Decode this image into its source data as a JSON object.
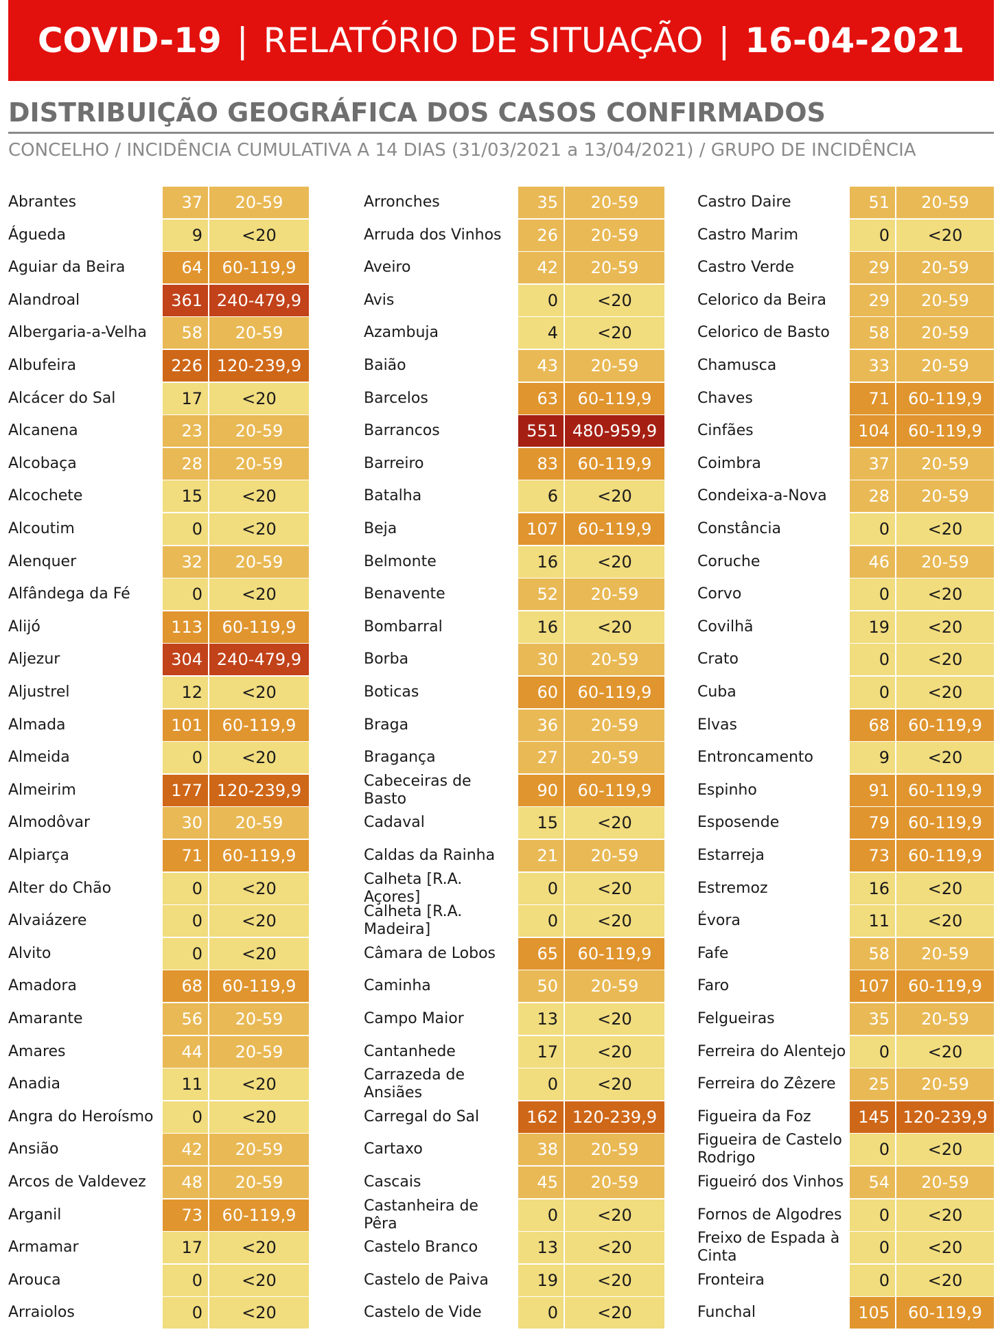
{
  "banner": {
    "part1": "COVID-19",
    "sep1": "|",
    "part2": "RELATÓRIO DE SITUAÇÃO",
    "sep2": "|",
    "part3": "16-04-2021"
  },
  "heading": "DISTRIBUIÇÃO GEOGRÁFICA DOS CASOS CONFIRMADOS",
  "subheading": "CONCELHO / INCIDÊNCIA CUMULATIVA A 14 DIAS (31/03/2021 a 13/04/2021) / GRUPO DE INCIDÊNCIA",
  "group_colors": {
    "<20": "#f1dc7e",
    "20-59": "#e9b955",
    "60-119,9": "#e0952e",
    "120-239,9": "#cf6718",
    "240-479,9": "#c2421a",
    "480-959,9": "#a52013"
  },
  "columns": [
    [
      {
        "name": "Abrantes",
        "value": "37",
        "group": "20-59"
      },
      {
        "name": "Águeda",
        "value": "9",
        "group": "<20"
      },
      {
        "name": "Aguiar da Beira",
        "value": "64",
        "group": "60-119,9"
      },
      {
        "name": "Alandroal",
        "value": "361",
        "group": "240-479,9"
      },
      {
        "name": "Albergaria-a-Velha",
        "value": "58",
        "group": "20-59"
      },
      {
        "name": "Albufeira",
        "value": "226",
        "group": "120-239,9"
      },
      {
        "name": "Alcácer do Sal",
        "value": "17",
        "group": "<20"
      },
      {
        "name": "Alcanena",
        "value": "23",
        "group": "20-59"
      },
      {
        "name": "Alcobaça",
        "value": "28",
        "group": "20-59"
      },
      {
        "name": "Alcochete",
        "value": "15",
        "group": "<20"
      },
      {
        "name": "Alcoutim",
        "value": "0",
        "group": "<20"
      },
      {
        "name": "Alenquer",
        "value": "32",
        "group": "20-59"
      },
      {
        "name": "Alfândega da Fé",
        "value": "0",
        "group": "<20"
      },
      {
        "name": "Alijó",
        "value": "113",
        "group": "60-119,9"
      },
      {
        "name": "Aljezur",
        "value": "304",
        "group": "240-479,9"
      },
      {
        "name": "Aljustrel",
        "value": "12",
        "group": "<20"
      },
      {
        "name": "Almada",
        "value": "101",
        "group": "60-119,9"
      },
      {
        "name": "Almeida",
        "value": "0",
        "group": "<20"
      },
      {
        "name": "Almeirim",
        "value": "177",
        "group": "120-239,9"
      },
      {
        "name": "Almodôvar",
        "value": "30",
        "group": "20-59"
      },
      {
        "name": "Alpiarça",
        "value": "71",
        "group": "60-119,9"
      },
      {
        "name": "Alter do Chão",
        "value": "0",
        "group": "<20"
      },
      {
        "name": "Alvaiázere",
        "value": "0",
        "group": "<20"
      },
      {
        "name": "Alvito",
        "value": "0",
        "group": "<20"
      },
      {
        "name": "Amadora",
        "value": "68",
        "group": "60-119,9"
      },
      {
        "name": "Amarante",
        "value": "56",
        "group": "20-59"
      },
      {
        "name": "Amares",
        "value": "44",
        "group": "20-59"
      },
      {
        "name": "Anadia",
        "value": "11",
        "group": "<20"
      },
      {
        "name": "Angra do Heroísmo",
        "value": "0",
        "group": "<20"
      },
      {
        "name": "Ansião",
        "value": "42",
        "group": "20-59"
      },
      {
        "name": "Arcos de Valdevez",
        "value": "48",
        "group": "20-59"
      },
      {
        "name": "Arganil",
        "value": "73",
        "group": "60-119,9"
      },
      {
        "name": "Armamar",
        "value": "17",
        "group": "<20"
      },
      {
        "name": "Arouca",
        "value": "0",
        "group": "<20"
      },
      {
        "name": "Arraiolos",
        "value": "0",
        "group": "<20"
      }
    ],
    [
      {
        "name": "Arronches",
        "value": "35",
        "group": "20-59"
      },
      {
        "name": "Arruda dos Vinhos",
        "value": "26",
        "group": "20-59"
      },
      {
        "name": "Aveiro",
        "value": "42",
        "group": "20-59"
      },
      {
        "name": "Avis",
        "value": "0",
        "group": "<20"
      },
      {
        "name": "Azambuja",
        "value": "4",
        "group": "<20"
      },
      {
        "name": "Baião",
        "value": "43",
        "group": "20-59"
      },
      {
        "name": "Barcelos",
        "value": "63",
        "group": "60-119,9"
      },
      {
        "name": "Barrancos",
        "value": "551",
        "group": "480-959,9"
      },
      {
        "name": "Barreiro",
        "value": "83",
        "group": "60-119,9"
      },
      {
        "name": "Batalha",
        "value": "6",
        "group": "<20"
      },
      {
        "name": "Beja",
        "value": "107",
        "group": "60-119,9"
      },
      {
        "name": "Belmonte",
        "value": "16",
        "group": "<20"
      },
      {
        "name": "Benavente",
        "value": "52",
        "group": "20-59"
      },
      {
        "name": "Bombarral",
        "value": "16",
        "group": "<20"
      },
      {
        "name": "Borba",
        "value": "30",
        "group": "20-59"
      },
      {
        "name": "Boticas",
        "value": "60",
        "group": "60-119,9"
      },
      {
        "name": "Braga",
        "value": "36",
        "group": "20-59"
      },
      {
        "name": "Bragança",
        "value": "27",
        "group": "20-59"
      },
      {
        "name": "Cabeceiras de Basto",
        "value": "90",
        "group": "60-119,9"
      },
      {
        "name": "Cadaval",
        "value": "15",
        "group": "<20"
      },
      {
        "name": "Caldas da Rainha",
        "value": "21",
        "group": "20-59"
      },
      {
        "name": "Calheta [R.A. Açores]",
        "value": "0",
        "group": "<20"
      },
      {
        "name": "Calheta [R.A. Madeira]",
        "value": "0",
        "group": "<20"
      },
      {
        "name": "Câmara de Lobos",
        "value": "65",
        "group": "60-119,9"
      },
      {
        "name": "Caminha",
        "value": "50",
        "group": "20-59"
      },
      {
        "name": "Campo Maior",
        "value": "13",
        "group": "<20"
      },
      {
        "name": "Cantanhede",
        "value": "17",
        "group": "<20"
      },
      {
        "name": "Carrazeda de Ansiães",
        "value": "0",
        "group": "<20"
      },
      {
        "name": "Carregal do Sal",
        "value": "162",
        "group": "120-239,9"
      },
      {
        "name": "Cartaxo",
        "value": "38",
        "group": "20-59"
      },
      {
        "name": "Cascais",
        "value": "45",
        "group": "20-59"
      },
      {
        "name": "Castanheira de Pêra",
        "value": "0",
        "group": "<20"
      },
      {
        "name": "Castelo Branco",
        "value": "13",
        "group": "<20"
      },
      {
        "name": "Castelo de Paiva",
        "value": "19",
        "group": "<20"
      },
      {
        "name": "Castelo de Vide",
        "value": "0",
        "group": "<20"
      }
    ],
    [
      {
        "name": "Castro Daire",
        "value": "51",
        "group": "20-59"
      },
      {
        "name": "Castro Marim",
        "value": "0",
        "group": "<20"
      },
      {
        "name": "Castro Verde",
        "value": "29",
        "group": "20-59"
      },
      {
        "name": "Celorico da Beira",
        "value": "29",
        "group": "20-59"
      },
      {
        "name": "Celorico de Basto",
        "value": "58",
        "group": "20-59"
      },
      {
        "name": "Chamusca",
        "value": "33",
        "group": "20-59"
      },
      {
        "name": "Chaves",
        "value": "71",
        "group": "60-119,9"
      },
      {
        "name": "Cinfães",
        "value": "104",
        "group": "60-119,9"
      },
      {
        "name": "Coimbra",
        "value": "37",
        "group": "20-59"
      },
      {
        "name": "Condeixa-a-Nova",
        "value": "28",
        "group": "20-59"
      },
      {
        "name": "Constância",
        "value": "0",
        "group": "<20"
      },
      {
        "name": "Coruche",
        "value": "46",
        "group": "20-59"
      },
      {
        "name": "Corvo",
        "value": "0",
        "group": "<20"
      },
      {
        "name": "Covilhã",
        "value": "19",
        "group": "<20"
      },
      {
        "name": "Crato",
        "value": "0",
        "group": "<20"
      },
      {
        "name": "Cuba",
        "value": "0",
        "group": "<20"
      },
      {
        "name": "Elvas",
        "value": "68",
        "group": "60-119,9"
      },
      {
        "name": "Entroncamento",
        "value": "9",
        "group": "<20"
      },
      {
        "name": "Espinho",
        "value": "91",
        "group": "60-119,9"
      },
      {
        "name": "Esposende",
        "value": "79",
        "group": "60-119,9"
      },
      {
        "name": "Estarreja",
        "value": "73",
        "group": "60-119,9"
      },
      {
        "name": "Estremoz",
        "value": "16",
        "group": "<20"
      },
      {
        "name": "Évora",
        "value": "11",
        "group": "<20"
      },
      {
        "name": "Fafe",
        "value": "58",
        "group": "20-59"
      },
      {
        "name": "Faro",
        "value": "107",
        "group": "60-119,9"
      },
      {
        "name": "Felgueiras",
        "value": "35",
        "group": "20-59"
      },
      {
        "name": "Ferreira do Alentejo",
        "value": "0",
        "group": "<20"
      },
      {
        "name": "Ferreira do Zêzere",
        "value": "25",
        "group": "20-59"
      },
      {
        "name": "Figueira da Foz",
        "value": "145",
        "group": "120-239,9"
      },
      {
        "name": "Figueira de Castelo Rodrigo",
        "value": "0",
        "group": "<20"
      },
      {
        "name": "Figueiró dos Vinhos",
        "value": "54",
        "group": "20-59"
      },
      {
        "name": "Fornos de Algodres",
        "value": "0",
        "group": "<20"
      },
      {
        "name": "Freixo de Espada à Cinta",
        "value": "0",
        "group": "<20"
      },
      {
        "name": "Fronteira",
        "value": "0",
        "group": "<20"
      },
      {
        "name": "Funchal",
        "value": "105",
        "group": "60-119,9"
      }
    ]
  ]
}
